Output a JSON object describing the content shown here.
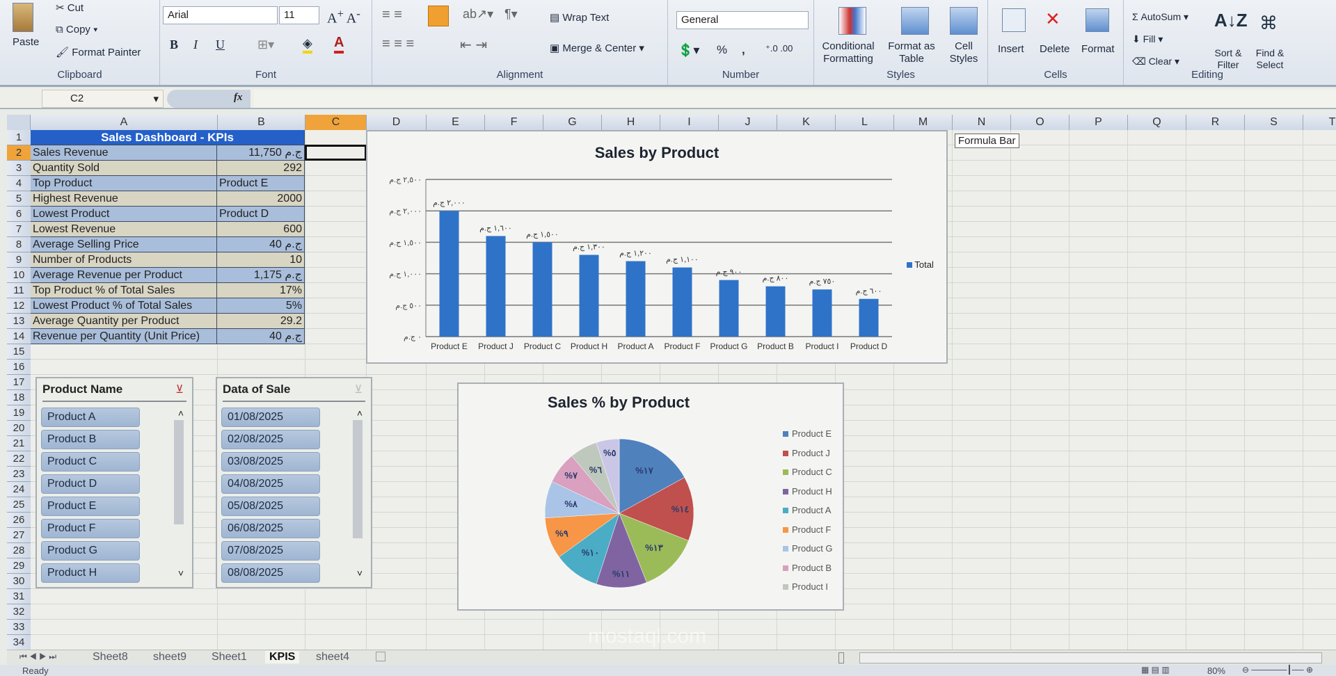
{
  "ribbon": {
    "clipboard": {
      "label": "Clipboard",
      "paste": "Paste",
      "cut": "Cut",
      "copy": "Copy",
      "format_painter": "Format Painter"
    },
    "font": {
      "label": "Font",
      "family": "Arial",
      "size": "11",
      "bold": "B",
      "italic": "I",
      "underline": "U"
    },
    "alignment": {
      "label": "Alignment",
      "wrap_text": "Wrap Text",
      "merge_center": "Merge & Center"
    },
    "number": {
      "label": "Number",
      "format": "General",
      "percent": "%",
      "comma": ","
    },
    "styles": {
      "label": "Styles",
      "conditional": "Conditional Formatting",
      "format_table": "Format as Table",
      "cell_styles": "Cell Styles"
    },
    "cells": {
      "label": "Cells",
      "insert": "Insert",
      "delete": "Delete",
      "format": "Format"
    },
    "editing": {
      "label": "Editing",
      "autosum": "AutoSum",
      "fill": "Fill",
      "clear": "Clear",
      "sort": "Sort & Filter",
      "find": "Find & Select"
    }
  },
  "formula_bar": {
    "name_box": "C2",
    "fx": "fx",
    "value": "",
    "tooltip": "Formula Bar"
  },
  "columns": [
    "A",
    "B",
    "C",
    "D",
    "E",
    "F",
    "G",
    "H",
    "I",
    "J",
    "K",
    "L",
    "M",
    "N",
    "O",
    "P",
    "Q",
    "R",
    "S",
    "T"
  ],
  "rows": [
    "1",
    "2",
    "3",
    "4",
    "5",
    "6",
    "7",
    "8",
    "9",
    "10",
    "11",
    "12",
    "13",
    "14",
    "15",
    "16",
    "17",
    "18",
    "19",
    "20",
    "21",
    "22",
    "23",
    "24",
    "25",
    "26",
    "27",
    "28",
    "29",
    "30",
    "31",
    "32",
    "33",
    "34"
  ],
  "selected_cell": "C2",
  "kpi": {
    "title": "Sales Dashboard - KPIs",
    "items": [
      {
        "label": "Sales Revenue",
        "value": "11,750 ج.م"
      },
      {
        "label": "Quantity Sold",
        "value": "292"
      },
      {
        "label": "Top Product",
        "value": "Product E"
      },
      {
        "label": "Highest Revenue",
        "value": "2000"
      },
      {
        "label": "Lowest Product",
        "value": "Product D"
      },
      {
        "label": "Lowest Revenue",
        "value": "600"
      },
      {
        "label": "Average Selling Price",
        "value": "40 ج.م"
      },
      {
        "label": "Number of Products",
        "value": "10"
      },
      {
        "label": "Average Revenue per Product",
        "value": "1,175 ج.م"
      },
      {
        "label": "Top Product % of Total Sales",
        "value": "17%"
      },
      {
        "label": "Lowest Product % of Total Sales",
        "value": "5%"
      },
      {
        "label": "Average Quantity per Product",
        "value": "29.2"
      },
      {
        "label": "Revenue per Quantity (Unit Price)",
        "value": "40 ج.م"
      }
    ]
  },
  "slicers": [
    {
      "title": "Product Name",
      "items": [
        "Product A",
        "Product B",
        "Product C",
        "Product D",
        "Product E",
        "Product F",
        "Product G",
        "Product H"
      ]
    },
    {
      "title": "Data of Sale",
      "items": [
        "01/08/2025",
        "02/08/2025",
        "03/08/2025",
        "04/08/2025",
        "05/08/2025",
        "06/08/2025",
        "07/08/2025",
        "08/08/2025"
      ]
    }
  ],
  "chart_data": [
    {
      "type": "bar",
      "title": "Sales by Product",
      "categories": [
        "Product E",
        "Product J",
        "Product C",
        "Product H",
        "Product A",
        "Product F",
        "Product G",
        "Product B",
        "Product I",
        "Product D"
      ],
      "series": [
        {
          "name": "Total",
          "values": [
            2000,
            1600,
            1500,
            1300,
            1200,
            1100,
            900,
            800,
            750,
            600
          ],
          "color": "#2f73c9"
        }
      ],
      "value_labels": [
        "٢,٠٠٠ ج.م",
        "١,٦٠٠ ج.م",
        "١,٥٠٠ ج.م",
        "١,٣٠٠ ج.م",
        "١,٢٠٠ ج.م",
        "١,١٠٠ ج.م",
        "٩٠٠ ج.م",
        "٨٠٠ ج.م",
        "٧٥٠ ج.م",
        "٦٠٠ ج.م"
      ],
      "yticks": [
        0,
        500,
        1000,
        1500,
        2000,
        2500
      ],
      "ytick_labels": [
        "٠ ج.م",
        "٥٠٠ ج.م",
        "١,٠٠٠ ج.م",
        "١,٥٠٠ ج.م",
        "٢,٠٠٠ ج.م",
        "٢,٥٠٠ ج.م"
      ],
      "ylim": [
        0,
        2500
      ],
      "grid": true,
      "legend": "right"
    },
    {
      "type": "pie",
      "title": "Sales % by Product",
      "categories": [
        "Product E",
        "Product J",
        "Product C",
        "Product H",
        "Product A",
        "Product F",
        "Product G",
        "Product B",
        "Product I",
        "Product D"
      ],
      "values": [
        17,
        14,
        13,
        11,
        10,
        9,
        8,
        7,
        6,
        5
      ],
      "value_labels": [
        "%١٧",
        "%١٤",
        "%١٣",
        "%١١",
        "%١٠",
        "%٩",
        "%٨",
        "%٧",
        "%٦",
        "%٥"
      ],
      "colors": [
        "#4f81bd",
        "#c0504d",
        "#9bbb59",
        "#8064a2",
        "#4bacc6",
        "#f79646",
        "#a9c4e6",
        "#d9a0c0",
        "#bfc8bd",
        "#c9c6e6"
      ],
      "legend_entries": [
        "Product E",
        "Product J",
        "Product C",
        "Product H",
        "Product A",
        "Product F",
        "Product G",
        "Product B",
        "Product I"
      ],
      "legend": "right"
    }
  ],
  "sheet_tabs": [
    "Sheet8",
    "sheet9",
    "Sheet1",
    "KPIS",
    "sheet4"
  ],
  "active_tab": "KPIS",
  "status": {
    "ready": "Ready",
    "zoom": "80%"
  },
  "watermark": "mostaql.com"
}
